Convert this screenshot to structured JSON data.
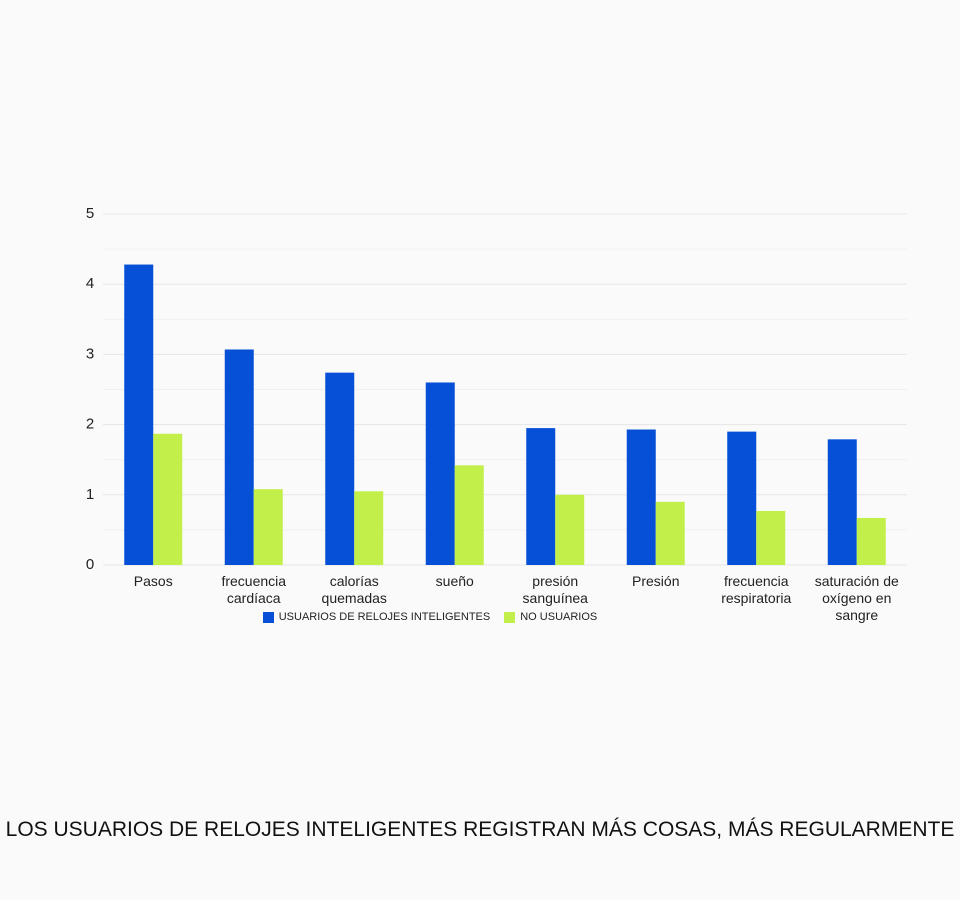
{
  "chart_data": {
    "type": "bar",
    "title": "LOS USUARIOS DE RELOJES INTELIGENTES REGISTRAN MÁS COSAS, MÁS REGULARMENTE",
    "categories": [
      "Pasos",
      "frecuencia cardíaca",
      "calorías quemadas",
      "sueño",
      "presión sanguínea",
      "Presión",
      "frecuencia respiratoria",
      "saturación de oxígeno en sangre"
    ],
    "series": [
      {
        "name": "USUARIOS DE RELOJES INTELIGENTES",
        "color": "#0650d8",
        "values": [
          4.28,
          3.07,
          2.74,
          2.6,
          1.95,
          1.93,
          1.9,
          1.79
        ]
      },
      {
        "name": "NO USUARIOS",
        "color": "#c2ef4a",
        "values": [
          1.87,
          1.08,
          1.05,
          1.42,
          1.0,
          0.9,
          0.77,
          0.67
        ]
      }
    ],
    "ylim": [
      0,
      5
    ],
    "yticks": [
      0,
      1,
      2,
      3,
      4,
      5
    ],
    "minor_yticks": [
      0.5,
      1.5,
      2.5,
      3.5,
      4.5
    ],
    "grid": true
  }
}
